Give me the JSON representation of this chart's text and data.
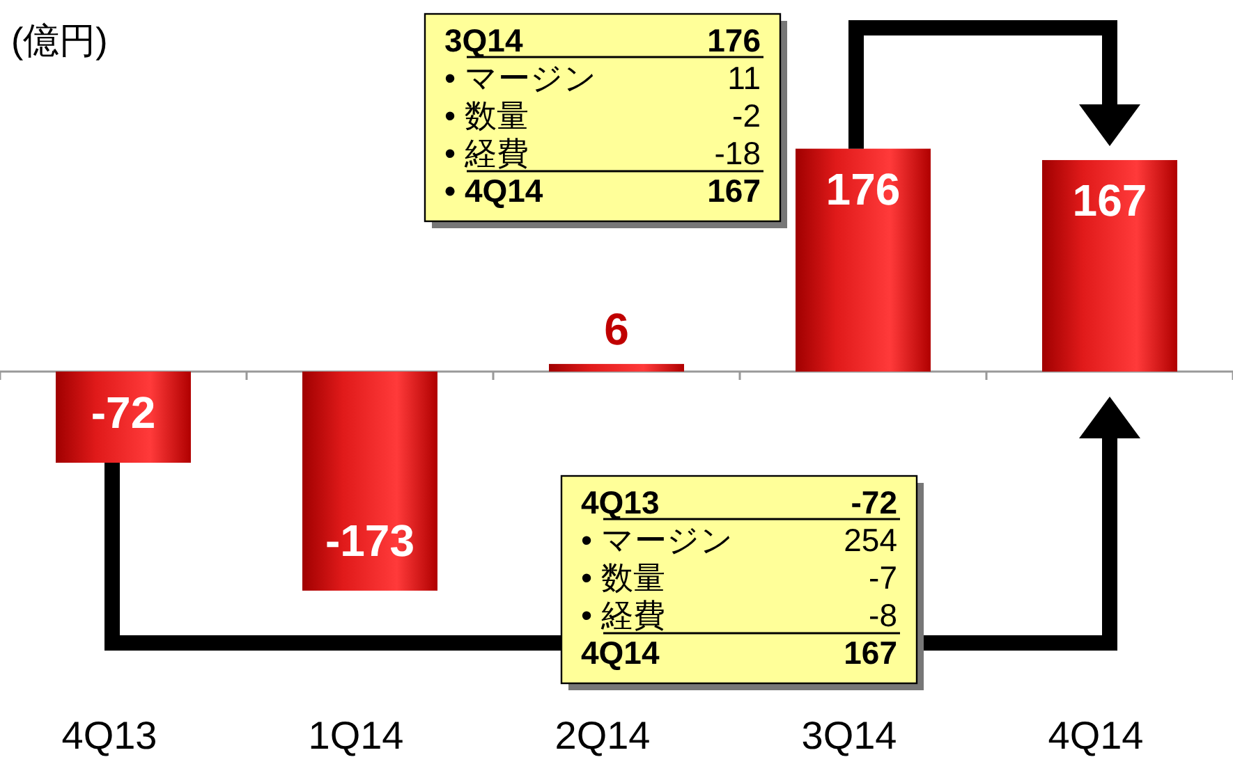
{
  "chart_data": {
    "type": "bar",
    "ylabel": "(億円)",
    "categories": [
      "4Q13",
      "1Q14",
      "2Q14",
      "3Q14",
      "4Q14"
    ],
    "values": [
      -72,
      -173,
      6,
      176,
      167
    ],
    "color": "#e01a1a",
    "data_labels": true,
    "annotations": [
      "3Q14 176",
      "• マージン 11",
      "• 数量 -2",
      "• 経費 -18",
      "• 4Q14 167",
      "4Q13 -72",
      "• マージン 254",
      "• 数量 -7",
      "• 経費 -8",
      "4Q14 167"
    ]
  }
}
